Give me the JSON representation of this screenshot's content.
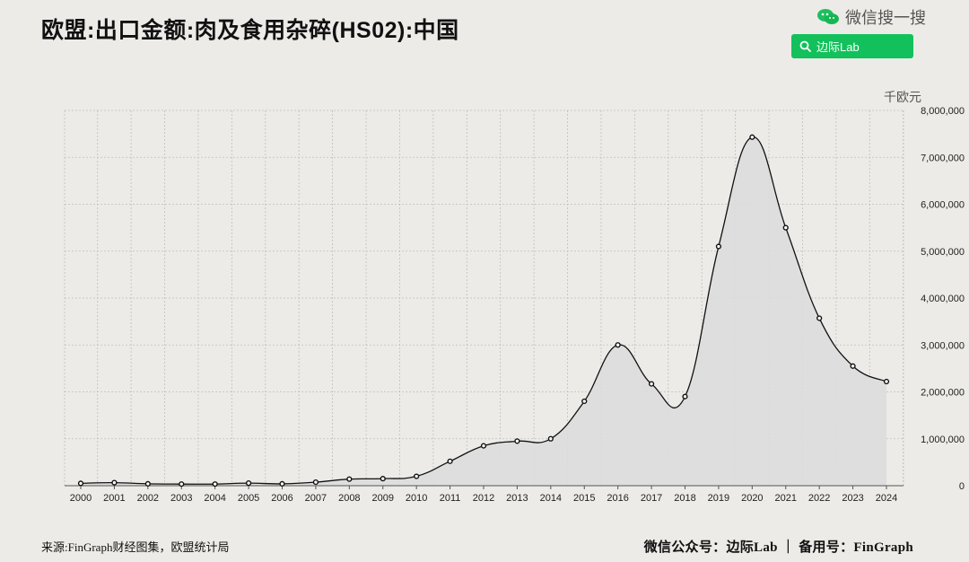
{
  "header": {
    "title": "欧盟:出口金额:肉及食用杂碎(HS02):中国",
    "wechat_text": "微信搜一搜",
    "search_label": "边际Lab"
  },
  "chart_data": {
    "type": "area",
    "unit": "千欧元",
    "categories": [
      "2000",
      "2001",
      "2002",
      "2003",
      "2004",
      "2005",
      "2006",
      "2007",
      "2008",
      "2009",
      "2010",
      "2011",
      "2012",
      "2013",
      "2014",
      "2015",
      "2016",
      "2017",
      "2018",
      "2019",
      "2020",
      "2021",
      "2022",
      "2023",
      "2024"
    ],
    "values": [
      50000,
      65000,
      40000,
      35000,
      35000,
      55000,
      40000,
      75000,
      140000,
      150000,
      200000,
      520000,
      850000,
      950000,
      1000000,
      1800000,
      3000000,
      2170000,
      1900000,
      5100000,
      7430000,
      5500000,
      3570000,
      2550000,
      2220000
    ],
    "ylim": [
      0,
      8000000
    ],
    "yticks": [
      "0",
      "1,000,000",
      "2,000,000",
      "3,000,000",
      "4,000,000",
      "5,000,000",
      "6,000,000",
      "7,000,000",
      "8,000,000"
    ],
    "ytick_values": [
      0,
      1000000,
      2000000,
      3000000,
      4000000,
      5000000,
      6000000,
      7000000,
      8000000
    ],
    "grid": true,
    "area_color": "#dddddd",
    "line_color": "#111111"
  },
  "footer": {
    "source": "来源:FinGraph财经图集，欧盟统计局",
    "credit": "微信公众号：边际Lab ｜ 备用号：FinGraph"
  }
}
